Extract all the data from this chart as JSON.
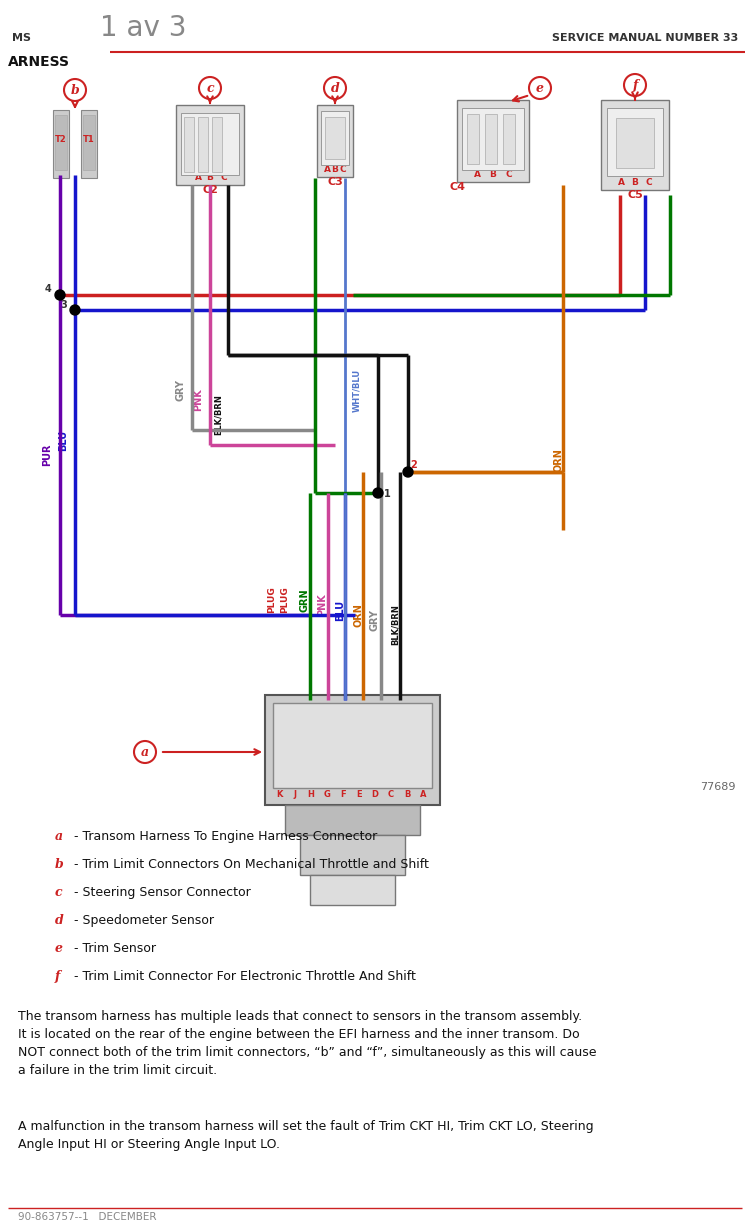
{
  "title_left": "MS",
  "title_center": "1 av 3",
  "title_right": "SERVICE MANUAL NUMBER 33",
  "subtitle": "ARNESS",
  "footer_left": "90-863757--1   DECEMBER",
  "diagram_number": "77689",
  "bg_color": "#ffffff",
  "legend_items": [
    {
      "letter": "a",
      "text": " - Transom Harness To Engine Harness Connector"
    },
    {
      "letter": "b",
      "text": " - Trim Limit Connectors On Mechanical Throttle and Shift"
    },
    {
      "letter": "c",
      "text": " - Steering Sensor Connector"
    },
    {
      "letter": "d",
      "text": " - Speedometer Sensor"
    },
    {
      "letter": "e",
      "text": " - Trim Sensor"
    },
    {
      "letter": "f",
      "text": " - Trim Limit Connector For Electronic Throttle And Shift"
    }
  ],
  "paragraph1": "The transom harness has multiple leads that connect to sensors in the transom assembly.\nIt is located on the rear of the engine between the EFI harness and the inner transom. Do\nNOT connect both of the trim limit connectors, “b” and “f”, simultaneously as this will cause\na failure in the trim limit circuit.",
  "paragraph2": "A malfunction in the transom harness will set the fault of Trim CKT HI, Trim CKT LO, Steering\nAngle Input HI or Steering Angle Input LO."
}
